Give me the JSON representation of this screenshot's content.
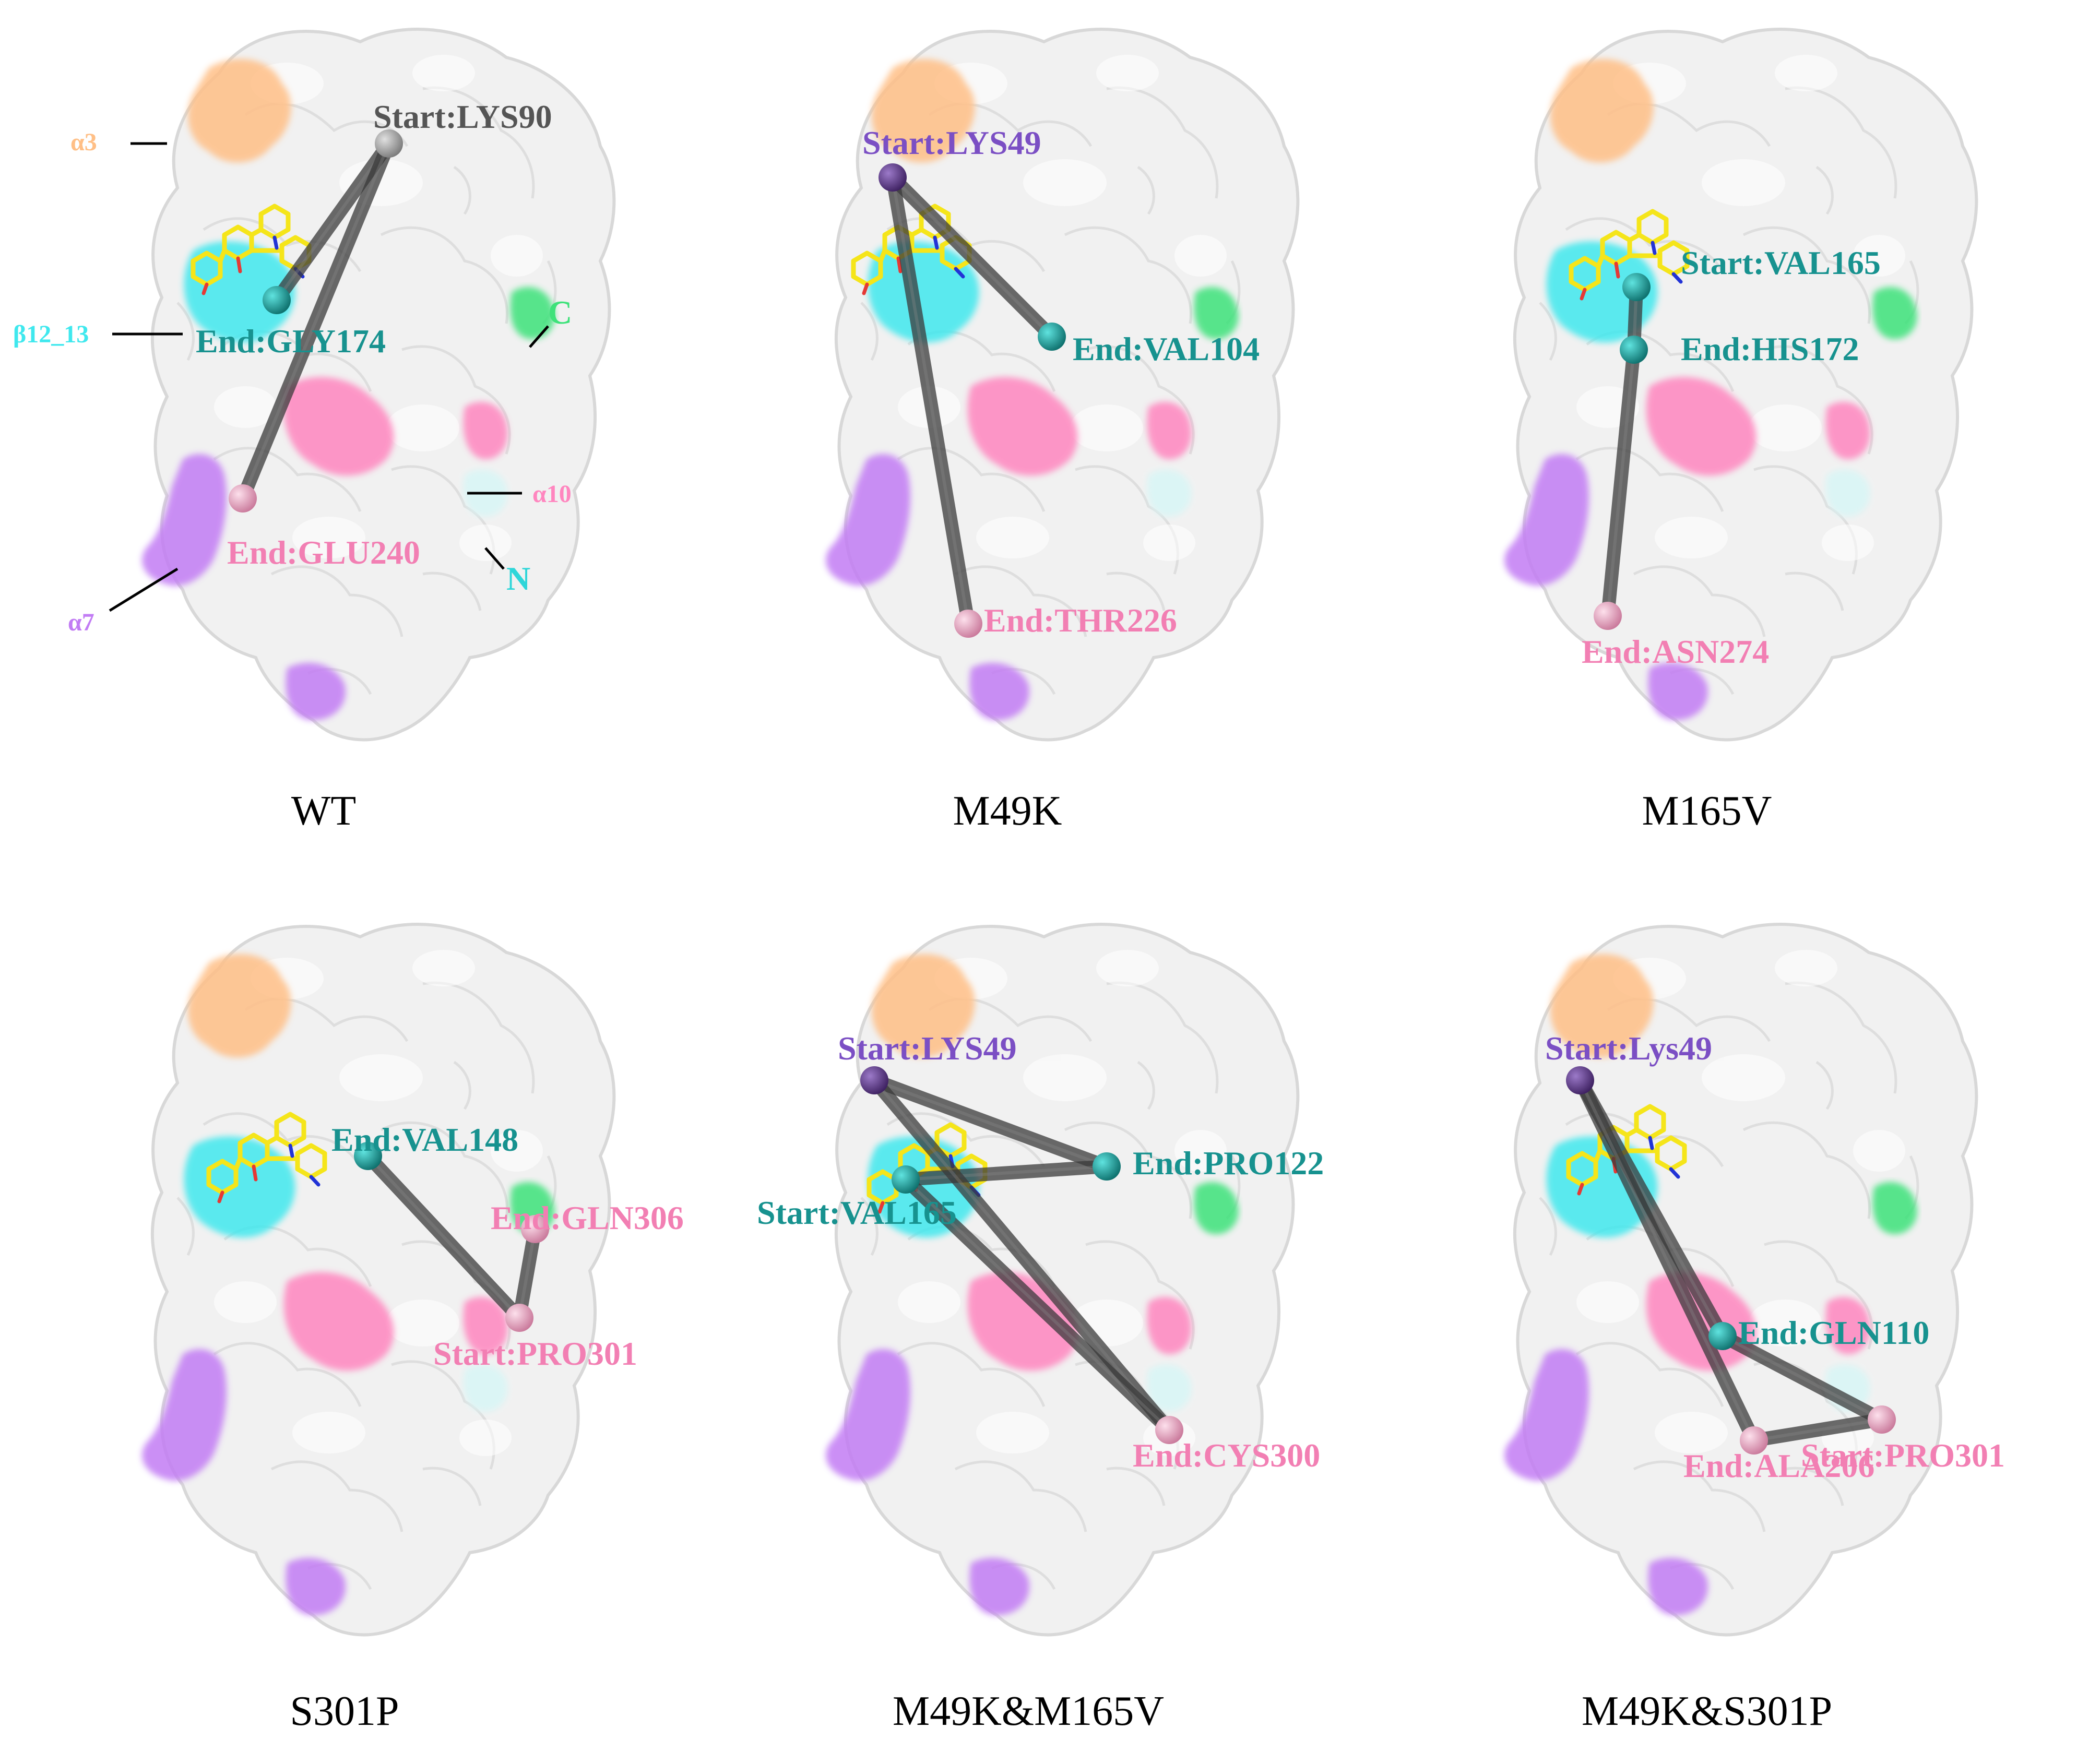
{
  "colors": {
    "surface": "#f1f1f1",
    "surface_edge": "#d6d6d6",
    "alpha3": "#ffbf86",
    "beta12_13": "#3fe8ee",
    "c_terminus": "#3ee27a",
    "alpha10": "#ff86bf",
    "alpha7": "#c27cf4",
    "n_terminus": "#d8f6f6",
    "start_gray": "#8e8e8e",
    "purple_node": "#6a3d9a",
    "teal_node": "#1aa7a3",
    "pink_node": "#f4a7c6",
    "path_line": "#3a3a3a",
    "label_gray": "#555555",
    "label_purple": "#7b4fc4",
    "label_teal": "#17928f",
    "label_pink": "#f27fb3",
    "ligand": "#f5e51a"
  },
  "panels": [
    {
      "caption": "WT",
      "region_labels": {
        "alpha3": "α3",
        "beta12_13": "β12_13",
        "alpha10": "α10",
        "alpha7": "α7"
      },
      "terminus_labels": {
        "c": "C",
        "n": "N"
      },
      "residues": [
        {
          "label": "Start:LYS90",
          "color_key": "start_gray"
        },
        {
          "label": "End:GLY174",
          "color_key": "teal_node"
        },
        {
          "label": "End:GLU240",
          "color_key": "pink_node"
        }
      ]
    },
    {
      "caption": "M49K",
      "residues": [
        {
          "label": "Start:LYS49",
          "color_key": "purple_node"
        },
        {
          "label": "End:VAL104",
          "color_key": "teal_node"
        },
        {
          "label": "End:THR226",
          "color_key": "pink_node"
        }
      ]
    },
    {
      "caption": "M165V",
      "residues": [
        {
          "label": "Start:VAL165",
          "color_key": "teal_node"
        },
        {
          "label": "End:HIS172",
          "color_key": "teal_node"
        },
        {
          "label": "End:ASN274",
          "color_key": "pink_node"
        }
      ]
    },
    {
      "caption": "S301P",
      "residues": [
        {
          "label": "End:VAL148",
          "color_key": "teal_node"
        },
        {
          "label": "End:GLN306",
          "color_key": "pink_node"
        },
        {
          "label": "Start:PRO301",
          "color_key": "pink_node"
        }
      ]
    },
    {
      "caption": "M49K&M165V",
      "residues": [
        {
          "label": "Start:LYS49",
          "color_key": "purple_node"
        },
        {
          "label": "End:PRO122",
          "color_key": "teal_node"
        },
        {
          "label": "Start:VAL165",
          "color_key": "teal_node"
        },
        {
          "label": "End:CYS300",
          "color_key": "pink_node"
        }
      ]
    },
    {
      "caption": "M49K&S301P",
      "residues": [
        {
          "label": "Start:Lys49",
          "color_key": "purple_node"
        },
        {
          "label": "End:GLN110",
          "color_key": "teal_node"
        },
        {
          "label": "End:ALA206",
          "color_key": "pink_node"
        },
        {
          "label": "Start:PRO301",
          "color_key": "pink_node"
        }
      ]
    }
  ]
}
